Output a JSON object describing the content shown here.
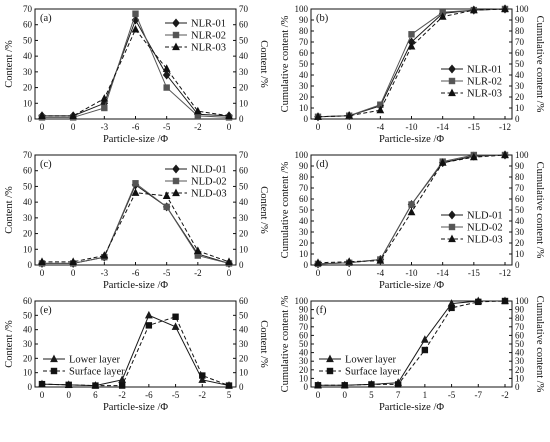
{
  "chart_data": [
    {
      "type": "line",
      "panel_label": "(a)",
      "x_ticks": [
        "0",
        "0",
        "-3",
        "-6",
        "-5",
        "-2",
        "0"
      ],
      "xlabel": "Particle-size /Φ",
      "ylabel_left": "Content /%",
      "ylabel_right": "Content /%",
      "ylim": [
        0,
        70
      ],
      "y_ticks": [
        0,
        10,
        20,
        30,
        40,
        50,
        60,
        70
      ],
      "legend": "top-right",
      "series": [
        {
          "name": "NLR-01",
          "marker": "diamond",
          "dash": "solid",
          "color": "#1a1a1a",
          "values": [
            2,
            2,
            10,
            63,
            28,
            3,
            2
          ]
        },
        {
          "name": "NLR-02",
          "marker": "square",
          "dash": "solid",
          "color": "#555555",
          "values": [
            1,
            1,
            7,
            67,
            20,
            2,
            1
          ]
        },
        {
          "name": "NLR-03",
          "marker": "triangle",
          "dash": "dash",
          "color": "#111111",
          "values": [
            2,
            2,
            13,
            57,
            32,
            5,
            2
          ]
        }
      ]
    },
    {
      "type": "line",
      "panel_label": "(b)",
      "x_ticks": [
        "0",
        "0",
        "-4",
        "-10",
        "-14",
        "-15",
        "-12"
      ],
      "xlabel": "Particle-size /Φ",
      "ylabel_left": "Cumulative content /%",
      "ylabel_right": "Cumulative content /%",
      "ylim": [
        0,
        100
      ],
      "y_ticks": [
        0,
        10,
        20,
        30,
        40,
        50,
        60,
        70,
        80,
        90,
        100
      ],
      "legend": "right",
      "series": [
        {
          "name": "NLR-01",
          "marker": "diamond",
          "dash": "solid",
          "color": "#1a1a1a",
          "values": [
            2,
            3,
            12,
            70,
            96,
            99,
            100
          ]
        },
        {
          "name": "NLR-02",
          "marker": "square",
          "dash": "solid",
          "color": "#555555",
          "values": [
            2,
            3,
            13,
            77,
            97,
            99,
            100
          ]
        },
        {
          "name": "NLR-03",
          "marker": "triangle",
          "dash": "dash",
          "color": "#111111",
          "values": [
            2,
            3,
            8,
            66,
            93,
            99,
            100
          ]
        }
      ]
    },
    {
      "type": "line",
      "panel_label": "(c)",
      "x_ticks": [
        "0",
        "0",
        "-3",
        "-6",
        "-5",
        "-2",
        "0"
      ],
      "xlabel": "Particle-size /Φ",
      "ylabel_left": "Content /%",
      "ylabel_right": "Content /%",
      "ylim": [
        0,
        70
      ],
      "y_ticks": [
        0,
        10,
        20,
        30,
        40,
        50,
        60,
        70
      ],
      "legend": "top-right",
      "series": [
        {
          "name": "NLD-01",
          "marker": "diamond",
          "dash": "solid",
          "color": "#1a1a1a",
          "values": [
            1,
            1,
            5,
            51,
            37,
            7,
            1
          ]
        },
        {
          "name": "NLD-02",
          "marker": "square",
          "dash": "solid",
          "color": "#555555",
          "values": [
            1,
            1,
            5,
            52,
            37,
            6,
            1
          ]
        },
        {
          "name": "NLD-03",
          "marker": "triangle",
          "dash": "dash",
          "color": "#111111",
          "values": [
            2,
            2,
            6,
            46,
            44,
            9,
            2
          ]
        }
      ]
    },
    {
      "type": "line",
      "panel_label": "(d)",
      "x_ticks": [
        "0",
        "0",
        "-4",
        "-10",
        "-14",
        "-15",
        "-12"
      ],
      "xlabel": "Particle-size /Φ",
      "ylabel_left": "Cumulative content /%",
      "ylabel_right": "Cumulative content /%",
      "ylim": [
        0,
        100
      ],
      "y_ticks": [
        0,
        10,
        20,
        30,
        40,
        50,
        60,
        70,
        80,
        90,
        100
      ],
      "legend": "right",
      "series": [
        {
          "name": "NLD-01",
          "marker": "diamond",
          "dash": "solid",
          "color": "#1a1a1a",
          "values": [
            1,
            2,
            5,
            55,
            93,
            99,
            100
          ]
        },
        {
          "name": "NLD-02",
          "marker": "square",
          "dash": "solid",
          "color": "#555555",
          "values": [
            1,
            2,
            5,
            55,
            94,
            100,
            100
          ]
        },
        {
          "name": "NLD-03",
          "marker": "triangle",
          "dash": "dash",
          "color": "#111111",
          "values": [
            2,
            3,
            4,
            48,
            93,
            98,
            100
          ]
        }
      ]
    },
    {
      "type": "line",
      "panel_label": "(e)",
      "x_ticks": [
        "0",
        "0",
        "6",
        "-2",
        "-6",
        "-5",
        "-2",
        "5"
      ],
      "xlabel": "Particle-size /Φ",
      "ylabel_left": "Content /%",
      "ylabel_right": "Content /%",
      "ylim": [
        0,
        60
      ],
      "y_ticks": [
        0,
        10,
        20,
        30,
        40,
        50,
        60
      ],
      "legend": "bottom-left",
      "series": [
        {
          "name": "Lower layer",
          "marker": "triangle",
          "dash": "solid",
          "color": "#1a1a1a",
          "values": [
            2,
            1.5,
            1,
            5,
            50,
            42,
            5,
            1
          ]
        },
        {
          "name": "Surface layer",
          "marker": "square",
          "dash": "dash",
          "color": "#111111",
          "values": [
            2,
            1.5,
            1,
            1,
            43,
            49,
            8,
            1
          ]
        }
      ]
    },
    {
      "type": "line",
      "panel_label": "(f)",
      "x_ticks": [
        "0",
        "0",
        "5",
        "7",
        "1",
        "-5",
        "-7",
        "-2"
      ],
      "xlabel": "Particle-size /Φ",
      "ylabel_left": "Cumulative content /%",
      "ylabel_right": "Cumulative content /%",
      "ylim": [
        0,
        100
      ],
      "y_ticks": [
        0,
        10,
        20,
        30,
        40,
        50,
        60,
        70,
        80,
        90,
        100
      ],
      "legend": "bottom-left",
      "series": [
        {
          "name": "Lower layer",
          "marker": "triangle",
          "dash": "solid",
          "color": "#1a1a1a",
          "values": [
            2,
            2,
            3,
            5,
            55,
            97,
            100,
            100
          ]
        },
        {
          "name": "Surface layer",
          "marker": "square",
          "dash": "dash",
          "color": "#111111",
          "values": [
            2,
            2,
            3,
            3,
            43,
            92,
            99,
            100
          ]
        }
      ]
    }
  ]
}
